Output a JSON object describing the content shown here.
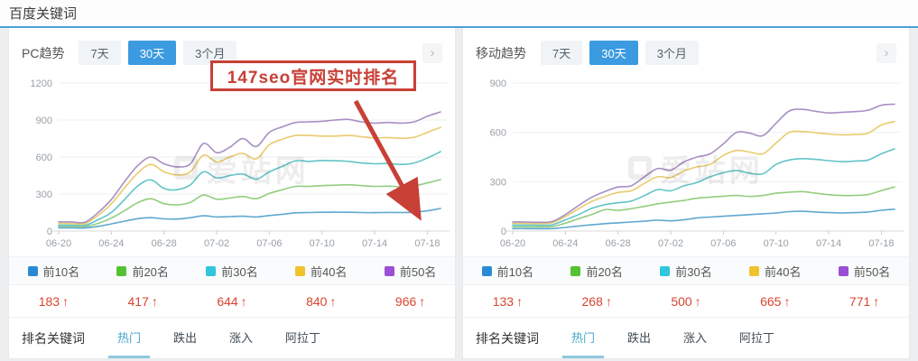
{
  "page": {
    "title": "百度关键词",
    "accent_blue": "#4aa0d9",
    "annotation_text": "147seo官网实时排名",
    "annotation_color": "#c84036",
    "up_glyph": "↑",
    "chevron_glyph": "›"
  },
  "panels": [
    {
      "name": "PC趋势",
      "range_tabs": [
        {
          "label": "7天",
          "active": false
        },
        {
          "label": "30天",
          "active": true
        },
        {
          "label": "3个月",
          "active": false
        }
      ],
      "watermark": "爱站网",
      "legend": [
        {
          "label": "前10名",
          "color": "#288ad6"
        },
        {
          "label": "前20名",
          "color": "#55c234"
        },
        {
          "label": "前30名",
          "color": "#2ec7dd"
        },
        {
          "label": "前40名",
          "color": "#f0c22e"
        },
        {
          "label": "前50名",
          "color": "#9a4fd4"
        }
      ],
      "numbers": [
        {
          "value": "183",
          "direction": "up"
        },
        {
          "value": "417",
          "direction": "up"
        },
        {
          "value": "644",
          "direction": "up"
        },
        {
          "value": "840",
          "direction": "up"
        },
        {
          "value": "966",
          "direction": "up"
        }
      ],
      "kw_label": "排名关键词",
      "kw_tabs": [
        {
          "label": "热门",
          "active": true
        },
        {
          "label": "跌出",
          "active": false
        },
        {
          "label": "涨入",
          "active": false
        },
        {
          "label": "阿拉丁",
          "active": false
        }
      ]
    },
    {
      "name": "移动趋势",
      "range_tabs": [
        {
          "label": "7天",
          "active": false
        },
        {
          "label": "30天",
          "active": true
        },
        {
          "label": "3个月",
          "active": false
        }
      ],
      "watermark": "爱站网",
      "legend": [
        {
          "label": "前10名",
          "color": "#288ad6"
        },
        {
          "label": "前20名",
          "color": "#55c234"
        },
        {
          "label": "前30名",
          "color": "#2ec7dd"
        },
        {
          "label": "前40名",
          "color": "#f0c22e"
        },
        {
          "label": "前50名",
          "color": "#9a4fd4"
        }
      ],
      "numbers": [
        {
          "value": "133",
          "direction": "up"
        },
        {
          "value": "268",
          "direction": "up"
        },
        {
          "value": "500",
          "direction": "up"
        },
        {
          "value": "665",
          "direction": "up"
        },
        {
          "value": "771",
          "direction": "up"
        }
      ],
      "kw_label": "排名关键词",
      "kw_tabs": [
        {
          "label": "热门",
          "active": true
        },
        {
          "label": "跌出",
          "active": false
        },
        {
          "label": "涨入",
          "active": false
        },
        {
          "label": "阿拉丁",
          "active": false
        }
      ]
    }
  ],
  "chart_data": [
    {
      "type": "line",
      "title": "PC趋势 30天",
      "x": [
        "06-20",
        "06-21",
        "06-22",
        "06-23",
        "06-24",
        "06-25",
        "06-26",
        "06-27",
        "06-28",
        "06-29",
        "06-30",
        "07-01",
        "07-02",
        "07-03",
        "07-04",
        "07-05",
        "07-06",
        "07-07",
        "07-08",
        "07-09",
        "07-10",
        "07-11",
        "07-12",
        "07-13",
        "07-14",
        "07-15",
        "07-16",
        "07-17",
        "07-18",
        "07-19"
      ],
      "x_tick_labels": [
        "06-20",
        "06-24",
        "06-28",
        "07-02",
        "07-06",
        "07-10",
        "07-14",
        "07-18"
      ],
      "ylim": [
        0,
        1200
      ],
      "yticks": [
        0,
        300,
        600,
        900,
        1200
      ],
      "grid": true,
      "legend_position": "bottom",
      "series": [
        {
          "name": "前10名",
          "color": "#5fa8cf",
          "values": [
            26,
            26,
            25,
            38,
            58,
            80,
            100,
            108,
            99,
            97,
            108,
            124,
            114,
            117,
            120,
            114,
            126,
            136,
            148,
            150,
            152,
            153,
            152,
            150,
            149,
            151,
            150,
            152,
            164,
            183
          ]
        },
        {
          "name": "前20名",
          "color": "#93cd80",
          "values": [
            38,
            37,
            36,
            62,
            105,
            165,
            230,
            262,
            222,
            212,
            232,
            292,
            258,
            268,
            280,
            262,
            305,
            335,
            362,
            362,
            368,
            372,
            375,
            368,
            362,
            364,
            360,
            366,
            390,
            417
          ]
        },
        {
          "name": "前30名",
          "color": "#63c4c7",
          "values": [
            48,
            47,
            46,
            92,
            150,
            255,
            365,
            415,
            345,
            335,
            375,
            480,
            430,
            450,
            462,
            420,
            480,
            525,
            570,
            565,
            572,
            570,
            565,
            552,
            545,
            548,
            540,
            552,
            592,
            644
          ]
        },
        {
          "name": "前40名",
          "color": "#e9cb6d",
          "values": [
            62,
            61,
            60,
            128,
            220,
            350,
            470,
            540,
            480,
            455,
            480,
            615,
            560,
            600,
            630,
            585,
            700,
            745,
            775,
            775,
            770,
            770,
            775,
            765,
            755,
            758,
            752,
            760,
            800,
            840
          ]
        },
        {
          "name": "前50名",
          "color": "#a78fc3",
          "values": [
            75,
            74,
            72,
            150,
            255,
            400,
            530,
            600,
            545,
            520,
            545,
            710,
            635,
            680,
            750,
            685,
            800,
            845,
            880,
            885,
            890,
            900,
            905,
            885,
            875,
            880,
            875,
            885,
            930,
            966
          ]
        }
      ]
    },
    {
      "type": "line",
      "title": "移动趋势 30天",
      "x": [
        "06-20",
        "06-21",
        "06-22",
        "06-23",
        "06-24",
        "06-25",
        "06-26",
        "06-27",
        "06-28",
        "06-29",
        "06-30",
        "07-01",
        "07-02",
        "07-03",
        "07-04",
        "07-05",
        "07-06",
        "07-07",
        "07-08",
        "07-09",
        "07-10",
        "07-11",
        "07-12",
        "07-13",
        "07-14",
        "07-15",
        "07-16",
        "07-17",
        "07-18",
        "07-19"
      ],
      "x_tick_labels": [
        "06-20",
        "06-24",
        "06-28",
        "07-02",
        "07-06",
        "07-10",
        "07-14",
        "07-18"
      ],
      "ylim": [
        0,
        900
      ],
      "yticks": [
        0,
        300,
        600,
        900
      ],
      "grid": true,
      "legend_position": "bottom",
      "series": [
        {
          "name": "前10名",
          "color": "#5fa8cf",
          "values": [
            15,
            15,
            14,
            15,
            22,
            30,
            38,
            45,
            50,
            55,
            60,
            66,
            62,
            68,
            80,
            85,
            90,
            95,
            100,
            105,
            110,
            118,
            120,
            116,
            112,
            110,
            112,
            116,
            126,
            133
          ]
        },
        {
          "name": "前20名",
          "color": "#93cd80",
          "values": [
            26,
            26,
            25,
            27,
            48,
            75,
            100,
            130,
            126,
            136,
            150,
            165,
            176,
            186,
            200,
            206,
            212,
            216,
            210,
            216,
            230,
            236,
            240,
            230,
            221,
            216,
            217,
            222,
            246,
            268
          ]
        },
        {
          "name": "前30名",
          "color": "#63c4c7",
          "values": [
            36,
            36,
            35,
            38,
            68,
            100,
            138,
            160,
            172,
            182,
            215,
            252,
            245,
            275,
            295,
            330,
            355,
            368,
            352,
            348,
            405,
            432,
            440,
            436,
            428,
            422,
            426,
            432,
            470,
            500
          ]
        },
        {
          "name": "前40名",
          "color": "#e9cb6d",
          "values": [
            47,
            47,
            45,
            50,
            88,
            135,
            180,
            210,
            235,
            245,
            290,
            330,
            325,
            365,
            390,
            405,
            460,
            490,
            480,
            470,
            535,
            600,
            605,
            598,
            590,
            585,
            588,
            595,
            645,
            665
          ]
        },
        {
          "name": "前50名",
          "color": "#a78fc3",
          "values": [
            55,
            55,
            53,
            58,
            100,
            155,
            205,
            240,
            268,
            275,
            330,
            380,
            370,
            420,
            450,
            470,
            530,
            600,
            595,
            580,
            655,
            730,
            740,
            728,
            718,
            722,
            726,
            735,
            765,
            771
          ]
        }
      ]
    }
  ]
}
